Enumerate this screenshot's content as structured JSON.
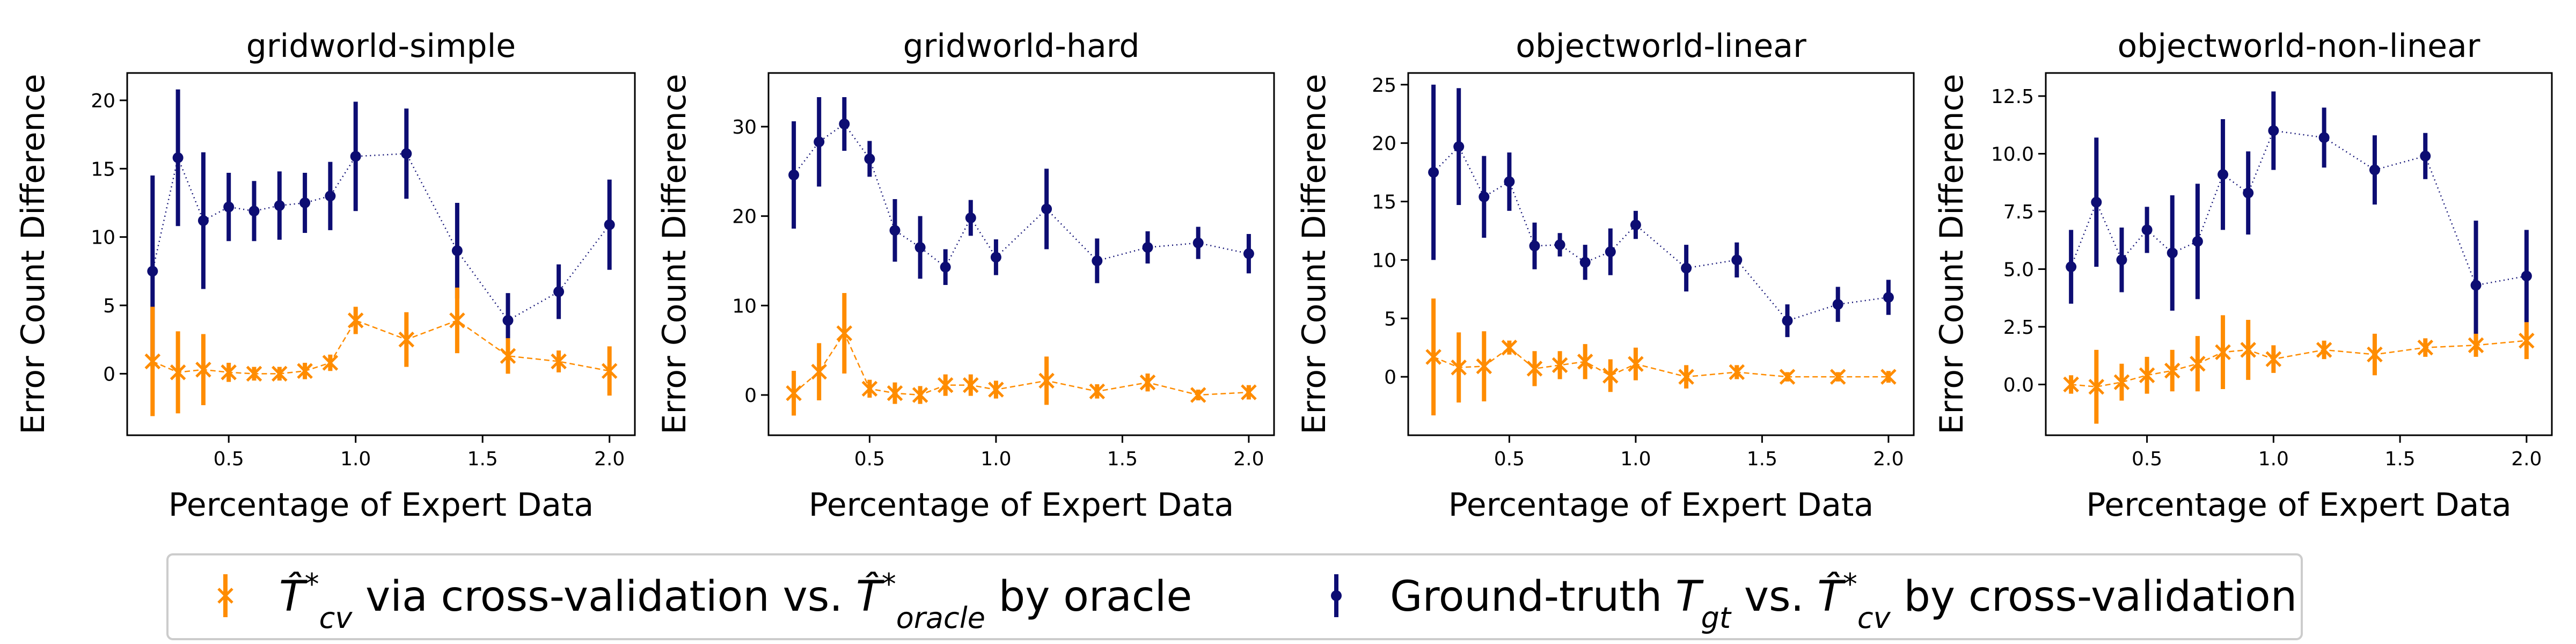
{
  "colors": {
    "cv_oracle": "#ff8c00",
    "gt_cv": "#0d0d73"
  },
  "legend": {
    "cv_oracle_label": "T̂*cv via cross-validation vs. T̂*oracle by oracle",
    "gt_cv_label": "Ground-truth Tgt vs. T̂*cv by cross-validation",
    "placement": "bottom-center"
  },
  "chart_data": [
    {
      "type": "line",
      "title": "gridworld-simple",
      "xlabel": "Percentage of Expert Data",
      "ylabel": "Error Count Difference",
      "xlim": [
        0.1,
        2.1
      ],
      "ylim": [
        -4.5,
        22
      ],
      "xticks": [
        0.5,
        1.0,
        1.5,
        2.0
      ],
      "yticks": [
        0,
        5,
        10,
        15,
        20
      ],
      "x": [
        0.2,
        0.3,
        0.4,
        0.5,
        0.6,
        0.7,
        0.8,
        0.9,
        1.0,
        1.2,
        1.4,
        1.6,
        1.8,
        2.0
      ],
      "series": [
        {
          "key": "gt_cv",
          "marker": "dot",
          "values": [
            7.5,
            15.8,
            11.2,
            12.2,
            11.9,
            12.3,
            12.5,
            13.0,
            15.9,
            16.1,
            9.0,
            3.9,
            6.0,
            10.9
          ],
          "errors": [
            7.0,
            5.0,
            5.0,
            2.5,
            2.2,
            2.5,
            2.2,
            2.5,
            4.0,
            3.3,
            3.5,
            2.0,
            2.0,
            3.3
          ]
        },
        {
          "key": "cv_oracle",
          "marker": "x",
          "values": [
            0.9,
            0.1,
            0.3,
            0.1,
            0.0,
            0.0,
            0.2,
            0.8,
            3.9,
            2.5,
            3.9,
            1.3,
            0.9,
            0.2
          ],
          "errors": [
            4.0,
            3.0,
            2.6,
            0.7,
            0.5,
            0.5,
            0.6,
            0.6,
            1.0,
            2.0,
            2.4,
            1.3,
            0.8,
            1.8
          ]
        }
      ]
    },
    {
      "type": "line",
      "title": "gridworld-hard",
      "xlabel": "Percentage of Expert Data",
      "ylabel": "Error Count Difference",
      "xlim": [
        0.1,
        2.1
      ],
      "ylim": [
        -4.5,
        36
      ],
      "xticks": [
        0.5,
        1.0,
        1.5,
        2.0
      ],
      "yticks": [
        0,
        10,
        20,
        30
      ],
      "x": [
        0.2,
        0.3,
        0.4,
        0.5,
        0.6,
        0.7,
        0.8,
        0.9,
        1.0,
        1.2,
        1.4,
        1.6,
        1.8,
        2.0
      ],
      "series": [
        {
          "key": "gt_cv",
          "marker": "dot",
          "values": [
            24.6,
            28.3,
            30.3,
            26.4,
            18.4,
            16.5,
            14.3,
            19.8,
            15.4,
            20.8,
            15.0,
            16.5,
            17.0,
            15.8
          ],
          "errors": [
            6.0,
            5.0,
            3.0,
            2.0,
            3.5,
            3.5,
            2.0,
            2.0,
            2.0,
            4.5,
            2.5,
            1.8,
            1.8,
            2.2
          ]
        },
        {
          "key": "cv_oracle",
          "marker": "x",
          "values": [
            0.2,
            2.6,
            6.9,
            0.7,
            0.2,
            0.0,
            1.1,
            1.1,
            0.6,
            1.6,
            0.4,
            1.4,
            0.0,
            0.3
          ],
          "errors": [
            2.5,
            3.2,
            4.5,
            1.0,
            1.2,
            1.0,
            1.2,
            1.2,
            1.0,
            2.7,
            0.8,
            1.0,
            0.6,
            0.8
          ]
        }
      ]
    },
    {
      "type": "line",
      "title": "objectworld-linear",
      "xlabel": "Percentage of Expert Data",
      "ylabel": "Error Count Difference",
      "xlim": [
        0.1,
        2.1
      ],
      "ylim": [
        -5,
        26
      ],
      "xticks": [
        0.5,
        1.0,
        1.5,
        2.0
      ],
      "yticks": [
        0,
        5,
        10,
        15,
        20,
        25
      ],
      "x": [
        0.2,
        0.3,
        0.4,
        0.5,
        0.6,
        0.7,
        0.8,
        0.9,
        1.0,
        1.2,
        1.4,
        1.6,
        1.8,
        2.0
      ],
      "series": [
        {
          "key": "gt_cv",
          "marker": "dot",
          "values": [
            17.5,
            19.7,
            15.4,
            16.7,
            11.2,
            11.3,
            9.8,
            10.7,
            13.0,
            9.3,
            10.0,
            4.8,
            6.2,
            6.8
          ],
          "errors": [
            7.5,
            5.0,
            3.5,
            2.5,
            2.0,
            1.0,
            1.5,
            2.0,
            1.2,
            2.0,
            1.5,
            1.4,
            1.5,
            1.5
          ]
        },
        {
          "key": "cv_oracle",
          "marker": "x",
          "values": [
            1.7,
            0.8,
            0.9,
            2.5,
            0.7,
            1.0,
            1.3,
            0.1,
            1.1,
            0.0,
            0.4,
            0.0,
            0.0,
            0.0
          ],
          "errors": [
            5.0,
            3.0,
            3.0,
            0.6,
            1.5,
            1.2,
            1.5,
            1.4,
            1.4,
            1.0,
            0.6,
            0.4,
            0.4,
            0.5
          ]
        }
      ]
    },
    {
      "type": "line",
      "title": "objectworld-non-linear",
      "xlabel": "Percentage of Expert Data",
      "ylabel": "Error Count Difference",
      "xlim": [
        0.1,
        2.1
      ],
      "ylim": [
        -2.2,
        13.5
      ],
      "xticks": [
        0.5,
        1.0,
        1.5,
        2.0
      ],
      "yticks": [
        0.0,
        2.5,
        5.0,
        7.5,
        10.0,
        12.5
      ],
      "x": [
        0.2,
        0.3,
        0.4,
        0.5,
        0.6,
        0.7,
        0.8,
        0.9,
        1.0,
        1.2,
        1.4,
        1.6,
        1.8,
        2.0
      ],
      "series": [
        {
          "key": "gt_cv",
          "marker": "dot",
          "values": [
            5.1,
            7.9,
            5.4,
            6.7,
            5.7,
            6.2,
            9.1,
            8.3,
            11.0,
            10.7,
            9.3,
            9.9,
            4.3,
            4.7
          ],
          "errors": [
            1.6,
            2.8,
            1.4,
            1.0,
            2.5,
            2.5,
            2.4,
            1.8,
            1.7,
            1.3,
            1.5,
            1.0,
            2.8,
            2.0
          ]
        },
        {
          "key": "cv_oracle",
          "marker": "x",
          "values": [
            0.0,
            -0.1,
            0.1,
            0.4,
            0.6,
            0.9,
            1.4,
            1.5,
            1.1,
            1.5,
            1.3,
            1.6,
            1.7,
            1.9
          ],
          "errors": [
            0.4,
            1.6,
            0.8,
            0.8,
            0.9,
            1.2,
            1.6,
            1.3,
            0.6,
            0.4,
            0.9,
            0.4,
            0.5,
            0.8
          ]
        }
      ]
    }
  ]
}
